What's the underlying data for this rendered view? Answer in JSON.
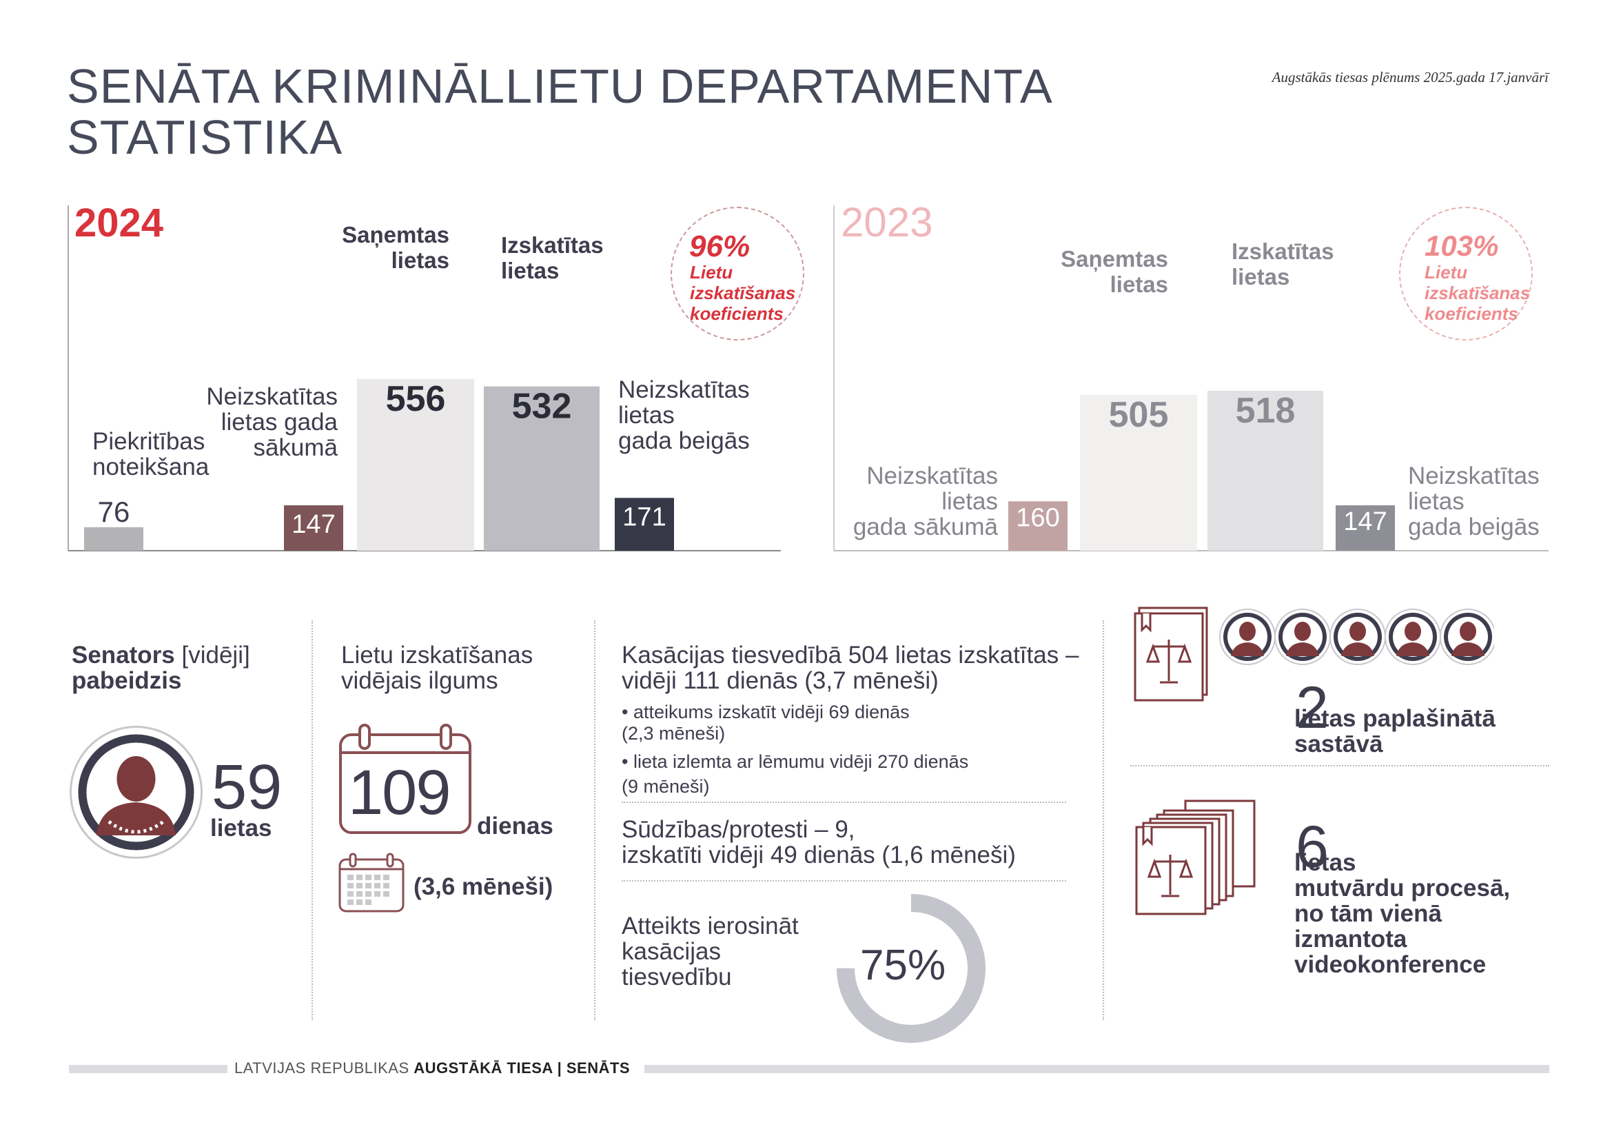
{
  "header": {
    "title": "SENĀTA KRIMINĀLLIETU DEPARTAMENTA\nSTATISTIKA",
    "date_note": "Augstākās tiesas plēnums 2025.gada 17.janvārī"
  },
  "chart_data": [
    {
      "type": "bar",
      "year_label": "2024",
      "categories": [
        "Piekritības noteikšana",
        "Neizskatītas lietas gada sākumā",
        "Saņemtas lietas",
        "Izskatītas lietas",
        "Neizskatītas lietas gada beigās"
      ],
      "values": [
        76,
        147,
        556,
        532,
        171
      ],
      "colors": [
        "#b3b3b6",
        "#7d5457",
        "#ebe8e9",
        "#bcbcc2",
        "#363747"
      ],
      "labels": {
        "piekritiba": "Piekritības\nnoteikšana",
        "sakuma": "Neizskatītas\nlietas gada\nsākumā",
        "sanemtas": "Saņemtas\nlietas",
        "izskatitas": "Izskatītas\nlietas",
        "beigas": "Neizskatītas\nlietas\ngada beigās"
      },
      "value_labels": [
        "76",
        "147",
        "556",
        "532",
        "171"
      ],
      "ratio": {
        "value": "96%",
        "label": "Lietu\nizskatīšanas\nkoeficients"
      }
    },
    {
      "type": "bar",
      "year_label": "2023",
      "categories": [
        "Neizskatītas lietas gada sākumā",
        "Saņemtas lietas",
        "Izskatītas lietas",
        "Neizskatītas lietas gada beigās"
      ],
      "values": [
        160,
        505,
        518,
        147
      ],
      "colors": [
        "#c2a3a3",
        "#f2efef",
        "#e1e1e4",
        "#8e8e96"
      ],
      "labels": {
        "sakuma": "Neizskatītas\nlietas\ngada sākumā",
        "sanemtas": "Saņemtas\nlietas",
        "izskatitas": "Izskatītas\nlietas",
        "beigas": "Neizskatītas\nlietas\ngada beigās"
      },
      "value_labels": [
        "160",
        "505",
        "518",
        "147"
      ],
      "ratio": {
        "value": "103%",
        "label": "Lietu\nizskatīšanas\nkoeficients"
      }
    }
  ],
  "senator": {
    "title_bold1": "Senators",
    "title_light": " [vidēji]",
    "title_bold2": "pabeidzis",
    "value": "59",
    "unit": "lietas"
  },
  "duration": {
    "title": "Lietu izskatīšanas\nvidējais ilgums",
    "days": "109",
    "days_unit": "dienas",
    "months": "(3,6 mēneši)"
  },
  "cassation": {
    "headline": "Kasācijas tiesvedībā 504 lietas izskatītas –\nvidēji 111 dienās (3,7 mēneši)",
    "bullet1": "• atteikums izskatīt vidēji 69 dienās\n   (2,3 mēneši)",
    "bullet2": "• lieta izlemta ar lēmumu vidēji 270 dienās\n   (9 mēneši)",
    "complaints": "Sūdzības/protesti – 9,\nizskatīti vidēji 49 dienās (1,6 mēneši)",
    "refused_label": "Atteikts ierosināt\nkasācijas\ntiesvedību",
    "refused_value": "75%",
    "refused_fraction": 0.75
  },
  "extended": {
    "value": "2",
    "text": "lietas paplašinātā\nsastāvā"
  },
  "oral": {
    "value": "6",
    "text": "lietas\nmutvārdu procesā,\nno tām vienā\nizmantota\nvideokonference"
  },
  "footer": {
    "prefix": "LATVIJAS REPUBLIKAS ",
    "bold": "AUGSTĀKĀ TIESA | SENĀTS"
  },
  "colors": {
    "accent": "#d9333c",
    "dark": "#3d3d4e",
    "maroon": "#7d3a3d"
  }
}
